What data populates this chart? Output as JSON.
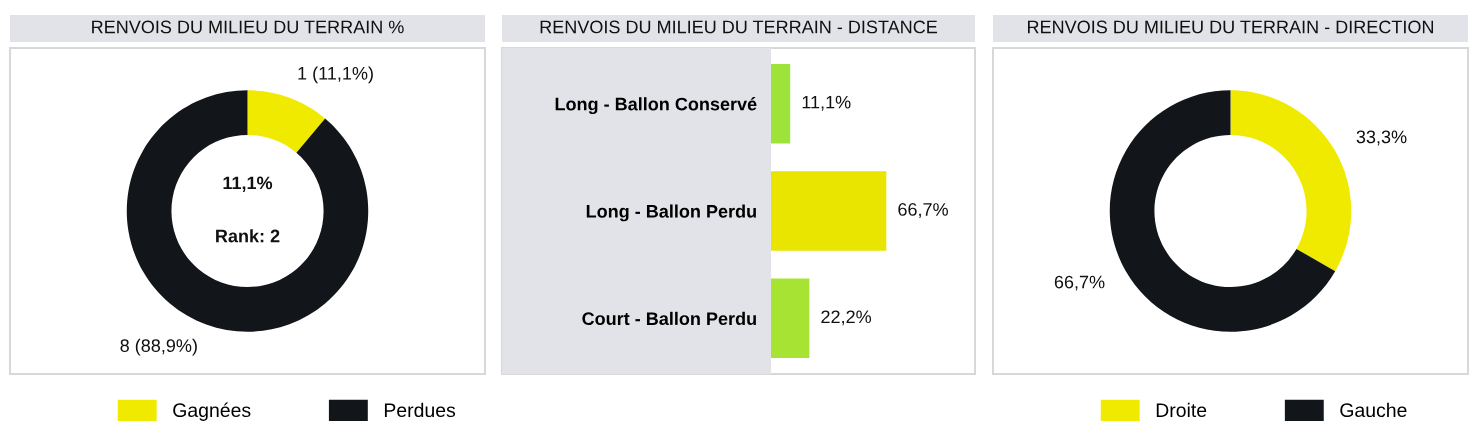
{
  "chart_data": [
    {
      "type": "donut",
      "title": "RENVOIS DU MILIEU DU TERRAIN %",
      "categories": [
        "Gagnées",
        "Perdues"
      ],
      "values": [
        1,
        8
      ],
      "colors": [
        "#f0ea00",
        "#12161a"
      ],
      "value_labels": [
        "1 (11,1%)",
        "8 (88,9%)"
      ],
      "annotations": [
        "11,1%",
        "Rank: 2"
      ],
      "legend": "bottom"
    },
    {
      "type": "bar",
      "orientation": "horizontal",
      "title": "RENVOIS DU MILIEU DU TERRAIN - DISTANCE",
      "categories": [
        "Long - Ballon Conservé",
        "Long - Ballon Perdu",
        "Court - Ballon Perdu"
      ],
      "values": [
        11.1,
        66.7,
        22.2
      ],
      "colors": [
        "#9de33a",
        "#e9e400",
        "#a6e332"
      ],
      "value_labels": [
        "11,1%",
        "66,7%",
        "22,2%"
      ],
      "xlim": [
        0,
        118
      ],
      "tick_labels": false
    },
    {
      "type": "donut",
      "title": "RENVOIS DU MILIEU DU TERRAIN - DIRECTION",
      "categories": [
        "Droite",
        "Gauche"
      ],
      "values": [
        33.3,
        66.7
      ],
      "colors": [
        "#f0ea00",
        "#12161a"
      ],
      "value_labels": [
        "33,3%",
        "66,7%"
      ],
      "legend": "bottom"
    }
  ]
}
